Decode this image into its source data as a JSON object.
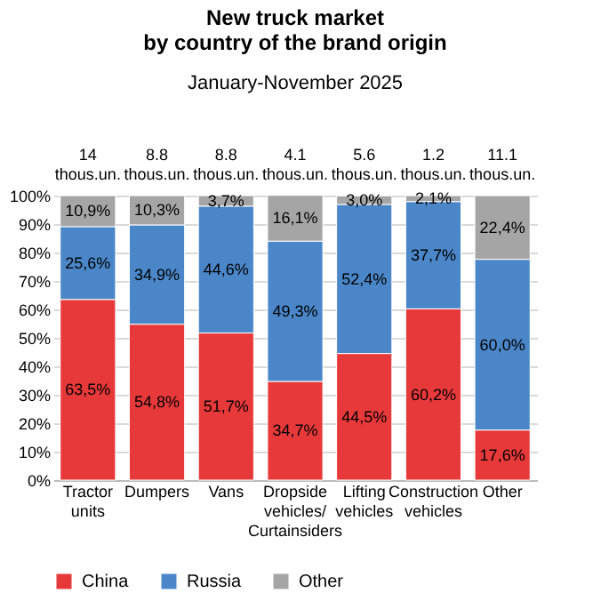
{
  "chart_data": {
    "type": "bar",
    "title": "New truck market\nby country of the brand origin",
    "subtitle": "January-November 2025",
    "categories": [
      "Tractor units",
      "Dumpers",
      "Vans",
      "Dropside vehicles/ Curtainsiders",
      "Lifting vehicles",
      "Construction vehicles",
      "Other"
    ],
    "stacked": true,
    "ylim": [
      0,
      100
    ],
    "yticks": [
      {
        "value": 0,
        "label": "0%"
      },
      {
        "value": 10,
        "label": "10%"
      },
      {
        "value": 20,
        "label": "20%"
      },
      {
        "value": 30,
        "label": "30%"
      },
      {
        "value": 40,
        "label": "40%"
      },
      {
        "value": 50,
        "label": "50%"
      },
      {
        "value": 60,
        "label": "60%"
      },
      {
        "value": 70,
        "label": "70%"
      },
      {
        "value": 80,
        "label": "80%"
      },
      {
        "value": 90,
        "label": "90%"
      },
      {
        "value": 100,
        "label": "100%"
      }
    ],
    "grid": "y",
    "legend": "bottom",
    "annotations": [
      "14 thous.un.",
      "8.8 thous.un.",
      "8.8 thous.un.",
      "4.1 thous.un.",
      "5.6 thous.un.",
      "1.2 thous.un.",
      "11.1 thous.un."
    ],
    "series": [
      {
        "name": "China",
        "color": "#e8393a",
        "values": [
          63.5,
          54.8,
          51.7,
          34.7,
          44.5,
          60.2,
          17.6
        ],
        "value_labels": [
          "63,5%",
          "54,8%",
          "51,7%",
          "34,7%",
          "44,5%",
          "60,2%",
          "17,6%"
        ]
      },
      {
        "name": "Russia",
        "color": "#4a86c8",
        "values": [
          25.6,
          34.9,
          44.6,
          49.3,
          52.4,
          37.7,
          60.0
        ],
        "value_labels": [
          "25,6%",
          "34,9%",
          "44,6%",
          "49,3%",
          "52,4%",
          "37,7%",
          "60,0%"
        ]
      },
      {
        "name": "Other",
        "color": "#a5a5a5",
        "values": [
          10.9,
          10.3,
          3.7,
          16.1,
          3.0,
          2.1,
          22.4
        ],
        "value_labels": [
          "10,9%",
          "10,3%",
          "3,7%",
          "16,1%",
          "3,0%",
          "2,1%",
          "22,4%"
        ]
      }
    ]
  }
}
